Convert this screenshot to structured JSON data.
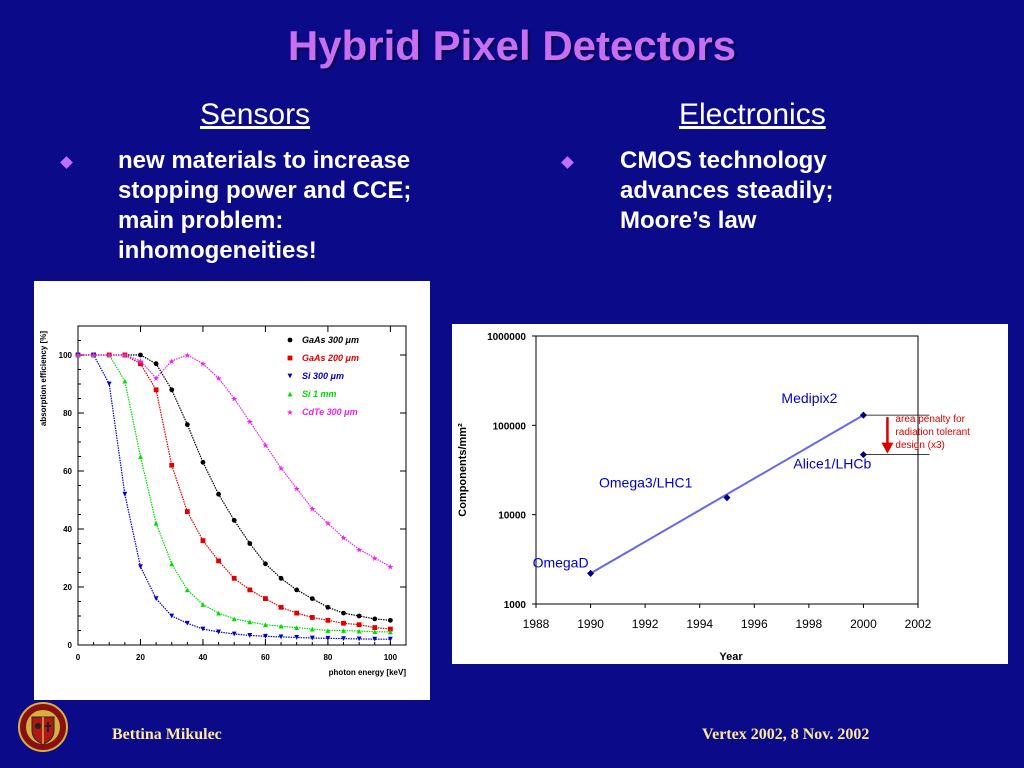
{
  "slide": {
    "title": "Hybrid Pixel Detectors",
    "left_heading": "Sensors",
    "right_heading": "Electronics",
    "left_bullet": [
      "new materials to increase",
      "stopping power and CCE;",
      "main problem:",
      "inhomogeneities!"
    ],
    "right_bullet": [
      "CMOS technology",
      "advances steadily;",
      "Moore’s law"
    ],
    "footer_left": "Bettina Mikulec",
    "footer_right": "Vertex 2002, 8 Nov. 2002",
    "colors": {
      "background": "#0b0b8a",
      "title": "#c86ef0",
      "footer": "#ffe99a"
    }
  },
  "chart_data": [
    {
      "type": "line",
      "title": "",
      "xlabel": "photon energy [keV]",
      "ylabel": "absorption efficiency [%]",
      "xlim": [
        0,
        105
      ],
      "ylim": [
        0,
        110
      ],
      "xticks": [
        "0",
        "20",
        "40",
        "60",
        "80",
        "100"
      ],
      "yticks": [
        "0",
        "20",
        "40",
        "60",
        "80",
        "100"
      ],
      "legend": "top-right",
      "series": [
        {
          "name": "GaAs 300 μm",
          "color": "#000000",
          "marker": "circle",
          "x": [
            0,
            5,
            10,
            15,
            20,
            25,
            30,
            35,
            40,
            45,
            50,
            55,
            60,
            65,
            70,
            75,
            80,
            85,
            90,
            95,
            100
          ],
          "y": [
            100,
            100,
            100,
            100,
            100,
            97,
            88,
            76,
            63,
            52,
            43,
            35,
            28,
            23,
            19,
            16,
            13,
            11,
            10,
            9,
            8.5
          ]
        },
        {
          "name": "GaAs 200 μm",
          "color": "#e00000",
          "marker": "square",
          "x": [
            0,
            5,
            10,
            15,
            20,
            25,
            30,
            35,
            40,
            45,
            50,
            55,
            60,
            65,
            70,
            75,
            80,
            85,
            90,
            95,
            100
          ],
          "y": [
            100,
            100,
            100,
            100,
            97,
            88,
            62,
            46,
            36,
            29,
            23,
            19,
            16,
            13,
            11,
            9.5,
            8.5,
            7.5,
            7,
            6,
            5.5
          ]
        },
        {
          "name": "Si 300 μm",
          "color": "#0000cc",
          "marker": "triangle-down",
          "x": [
            0,
            5,
            10,
            15,
            20,
            25,
            30,
            35,
            40,
            45,
            50,
            55,
            60,
            65,
            70,
            75,
            80,
            85,
            90,
            95,
            100
          ],
          "y": [
            100,
            100,
            90,
            52,
            27,
            16,
            10,
            7.5,
            5.5,
            4.5,
            3.8,
            3.3,
            3,
            2.8,
            2.6,
            2.4,
            2.3,
            2.2,
            2.1,
            2,
            2
          ]
        },
        {
          "name": "Si 1 mm",
          "color": "#00dd00",
          "marker": "triangle-up",
          "x": [
            0,
            5,
            10,
            15,
            20,
            25,
            30,
            35,
            40,
            45,
            50,
            55,
            60,
            65,
            70,
            75,
            80,
            85,
            90,
            95,
            100
          ],
          "y": [
            100,
            100,
            100,
            91,
            65,
            42,
            28,
            19,
            14,
            11,
            9,
            8,
            7,
            6.5,
            6,
            5.5,
            5,
            5,
            4.8,
            4.6,
            4.5
          ]
        },
        {
          "name": "CdTe 300 μm",
          "color": "#ee22ee",
          "marker": "star",
          "x": [
            0,
            5,
            10,
            15,
            20,
            25,
            30,
            35,
            40,
            45,
            50,
            55,
            60,
            65,
            70,
            75,
            80,
            85,
            90,
            95,
            100
          ],
          "y": [
            100,
            100,
            100,
            100,
            98,
            92,
            98,
            100,
            97,
            92,
            85,
            77,
            69,
            61,
            54,
            47,
            42,
            37,
            33,
            30,
            27
          ]
        }
      ]
    },
    {
      "type": "scatter",
      "title": "",
      "xlabel": "Year",
      "ylabel": "Components/mm²",
      "xlim": [
        1988,
        2002
      ],
      "ylim": [
        1000,
        1000000
      ],
      "y_scale": "log",
      "xticks": [
        "1988",
        "1990",
        "1992",
        "1994",
        "1996",
        "1998",
        "2000",
        "2002"
      ],
      "yticks": [
        "1000",
        "10000",
        "100000",
        "1000000"
      ],
      "points": [
        {
          "label": "OmegaD",
          "x": 1990,
          "y": 2200
        },
        {
          "label": "Omega3/LHC1",
          "x": 1995,
          "y": 15500
        },
        {
          "label": "Medipix2",
          "x": 2000,
          "y": 130000
        },
        {
          "label": "Alice1/LHCb",
          "x": 2000,
          "y": 47000
        }
      ],
      "trend": {
        "x": [
          1990,
          2000
        ],
        "y": [
          2200,
          130000
        ]
      },
      "annotation": [
        "area penalty for",
        "radiation tolerant",
        "design (x3)"
      ],
      "colors": {
        "points": "#000080",
        "labels": "#0000cc",
        "trend": "#6666ee",
        "annotation": "#dd0000"
      }
    }
  ]
}
